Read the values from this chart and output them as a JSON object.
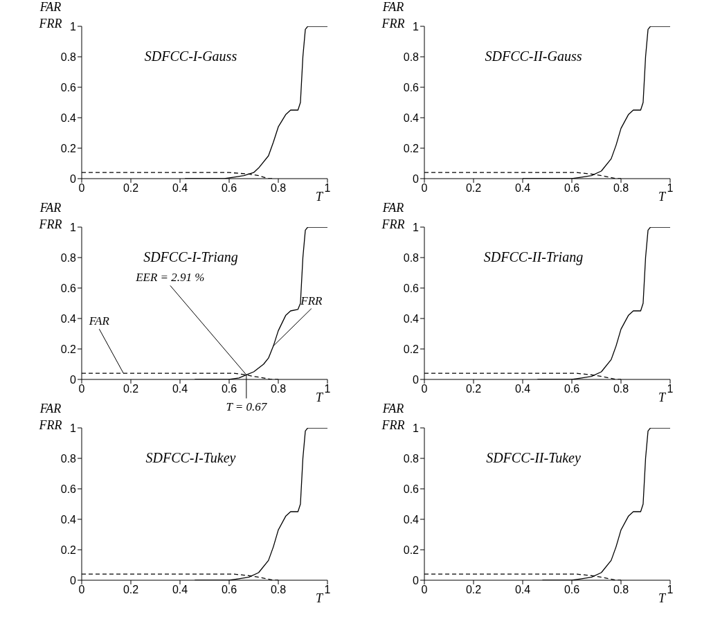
{
  "chart_data": [
    {
      "type": "line",
      "title": "SDFCC-I-Gauss",
      "xlabel": "T",
      "ylabel": "FAR\nFRR",
      "xlim": [
        0,
        1
      ],
      "ylim": [
        0,
        1
      ],
      "xticks": [
        0,
        0.2,
        0.4,
        0.6,
        0.8,
        1
      ],
      "yticks": [
        0,
        0.2,
        0.4,
        0.6,
        0.8,
        1
      ],
      "grid": false,
      "legend": false,
      "series": [
        {
          "color": "#000000",
          "line_style": "dashed",
          "x": [
            0,
            0.6,
            0.68,
            0.72,
            0.74,
            0.76,
            0.78
          ],
          "values": [
            0.04,
            0.04,
            0.03,
            0.02,
            0.01,
            0,
            0
          ]
        },
        {
          "color": "#000000",
          "line_style": "solid",
          "x": [
            0.42,
            0.58,
            0.62,
            0.66,
            0.7,
            0.72,
            0.76,
            0.78,
            0.8,
            0.83,
            0.85,
            0.88,
            0.89,
            0.9,
            0.91,
            0.92,
            1
          ],
          "values": [
            0,
            0,
            0.01,
            0.02,
            0.04,
            0.07,
            0.15,
            0.24,
            0.34,
            0.42,
            0.45,
            0.45,
            0.5,
            0.8,
            0.98,
            1,
            1
          ]
        }
      ]
    },
    {
      "type": "line",
      "title": "SDFCC-II-Gauss",
      "xlabel": "T",
      "ylabel": "FAR\nFRR",
      "xlim": [
        0,
        1
      ],
      "ylim": [
        0,
        1
      ],
      "xticks": [
        0,
        0.2,
        0.4,
        0.6,
        0.8,
        1
      ],
      "yticks": [
        0,
        0.2,
        0.4,
        0.6,
        0.8,
        1
      ],
      "grid": false,
      "legend": false,
      "series": [
        {
          "color": "#000000",
          "line_style": "dashed",
          "x": [
            0,
            0.62,
            0.68,
            0.72,
            0.75,
            0.78,
            0.8
          ],
          "values": [
            0.04,
            0.04,
            0.03,
            0.02,
            0.01,
            0,
            0
          ]
        },
        {
          "color": "#000000",
          "line_style": "solid",
          "x": [
            0.4,
            0.6,
            0.64,
            0.68,
            0.72,
            0.76,
            0.78,
            0.8,
            0.83,
            0.85,
            0.88,
            0.89,
            0.9,
            0.91,
            0.92,
            1
          ],
          "values": [
            0,
            0,
            0.01,
            0.02,
            0.05,
            0.13,
            0.22,
            0.33,
            0.42,
            0.45,
            0.45,
            0.5,
            0.8,
            0.98,
            1,
            1
          ]
        }
      ]
    },
    {
      "type": "line",
      "title": "SDFCC-I-Triang",
      "xlabel": "T",
      "ylabel": "FAR\nFRR",
      "xlim": [
        0,
        1
      ],
      "ylim": [
        0,
        1
      ],
      "xticks": [
        0,
        0.2,
        0.4,
        0.6,
        0.8,
        1
      ],
      "yticks": [
        0,
        0.2,
        0.4,
        0.6,
        0.8,
        1
      ],
      "grid": false,
      "legend": false,
      "series": [
        {
          "color": "#000000",
          "line_style": "dashed",
          "x": [
            0,
            0.62,
            0.67,
            0.7,
            0.74,
            0.77,
            0.8
          ],
          "values": [
            0.04,
            0.04,
            0.03,
            0.02,
            0.01,
            0,
            0
          ]
        },
        {
          "color": "#000000",
          "line_style": "solid",
          "x": [
            0.46,
            0.6,
            0.64,
            0.67,
            0.7,
            0.74,
            0.76,
            0.78,
            0.8,
            0.83,
            0.85,
            0.88,
            0.89,
            0.9,
            0.91,
            0.92,
            1
          ],
          "values": [
            0,
            0,
            0.01,
            0.03,
            0.05,
            0.1,
            0.14,
            0.22,
            0.32,
            0.42,
            0.45,
            0.46,
            0.5,
            0.8,
            0.98,
            1,
            1
          ]
        }
      ],
      "annotations": [
        {
          "text": "FAR",
          "x": 0.17,
          "y": 0.04
        },
        {
          "text": "EER = 2.91 %",
          "x": 0.67,
          "y": 0.03
        },
        {
          "text": "FRR",
          "x": 0.78,
          "y": 0.22
        },
        {
          "text": "T = 0.67",
          "x": 0.67,
          "y": 0.03
        }
      ]
    },
    {
      "type": "line",
      "title": "SDFCC-II-Triang",
      "xlabel": "T",
      "ylabel": "FAR\nFRR",
      "xlim": [
        0,
        1
      ],
      "ylim": [
        0,
        1
      ],
      "xticks": [
        0,
        0.2,
        0.4,
        0.6,
        0.8,
        1
      ],
      "yticks": [
        0,
        0.2,
        0.4,
        0.6,
        0.8,
        1
      ],
      "grid": false,
      "legend": false,
      "series": [
        {
          "color": "#000000",
          "line_style": "dashed",
          "x": [
            0,
            0.62,
            0.68,
            0.72,
            0.75,
            0.78,
            0.8
          ],
          "values": [
            0.04,
            0.04,
            0.03,
            0.02,
            0.01,
            0,
            0
          ]
        },
        {
          "color": "#000000",
          "line_style": "solid",
          "x": [
            0.46,
            0.6,
            0.64,
            0.68,
            0.72,
            0.76,
            0.78,
            0.8,
            0.83,
            0.85,
            0.88,
            0.89,
            0.9,
            0.91,
            0.92,
            1
          ],
          "values": [
            0,
            0,
            0.01,
            0.02,
            0.05,
            0.13,
            0.22,
            0.33,
            0.42,
            0.45,
            0.45,
            0.5,
            0.8,
            0.98,
            1,
            1
          ]
        }
      ]
    },
    {
      "type": "line",
      "title": "SDFCC-I-Tukey",
      "xlabel": "T",
      "ylabel": "FAR\nFRR",
      "xlim": [
        0,
        1
      ],
      "ylim": [
        0,
        1
      ],
      "xticks": [
        0,
        0.2,
        0.4,
        0.6,
        0.8,
        1
      ],
      "yticks": [
        0,
        0.2,
        0.4,
        0.6,
        0.8,
        1
      ],
      "grid": false,
      "legend": false,
      "series": [
        {
          "color": "#000000",
          "line_style": "dashed",
          "x": [
            0,
            0.62,
            0.68,
            0.72,
            0.75,
            0.78,
            0.8
          ],
          "values": [
            0.04,
            0.04,
            0.03,
            0.02,
            0.01,
            0,
            0
          ]
        },
        {
          "color": "#000000",
          "line_style": "solid",
          "x": [
            0.46,
            0.6,
            0.64,
            0.68,
            0.72,
            0.76,
            0.78,
            0.8,
            0.83,
            0.85,
            0.88,
            0.89,
            0.9,
            0.91,
            0.92,
            1
          ],
          "values": [
            0,
            0,
            0.01,
            0.02,
            0.05,
            0.13,
            0.22,
            0.33,
            0.42,
            0.45,
            0.45,
            0.5,
            0.8,
            0.98,
            1,
            1
          ]
        }
      ]
    },
    {
      "type": "line",
      "title": "SDFCC-II-Tukey",
      "xlabel": "T",
      "ylabel": "FAR\nFRR",
      "xlim": [
        0,
        1
      ],
      "ylim": [
        0,
        1
      ],
      "xticks": [
        0,
        0.2,
        0.4,
        0.6,
        0.8,
        1
      ],
      "yticks": [
        0,
        0.2,
        0.4,
        0.6,
        0.8,
        1
      ],
      "grid": false,
      "legend": false,
      "series": [
        {
          "color": "#000000",
          "line_style": "dashed",
          "x": [
            0,
            0.62,
            0.68,
            0.72,
            0.75,
            0.78,
            0.8
          ],
          "values": [
            0.04,
            0.04,
            0.03,
            0.02,
            0.01,
            0,
            0
          ]
        },
        {
          "color": "#000000",
          "line_style": "solid",
          "x": [
            0.48,
            0.6,
            0.64,
            0.68,
            0.72,
            0.76,
            0.78,
            0.8,
            0.83,
            0.85,
            0.88,
            0.89,
            0.9,
            0.91,
            0.92,
            1
          ],
          "values": [
            0,
            0,
            0.01,
            0.02,
            0.05,
            0.13,
            0.22,
            0.33,
            0.42,
            0.45,
            0.45,
            0.5,
            0.8,
            0.98,
            1,
            1
          ]
        }
      ]
    }
  ]
}
